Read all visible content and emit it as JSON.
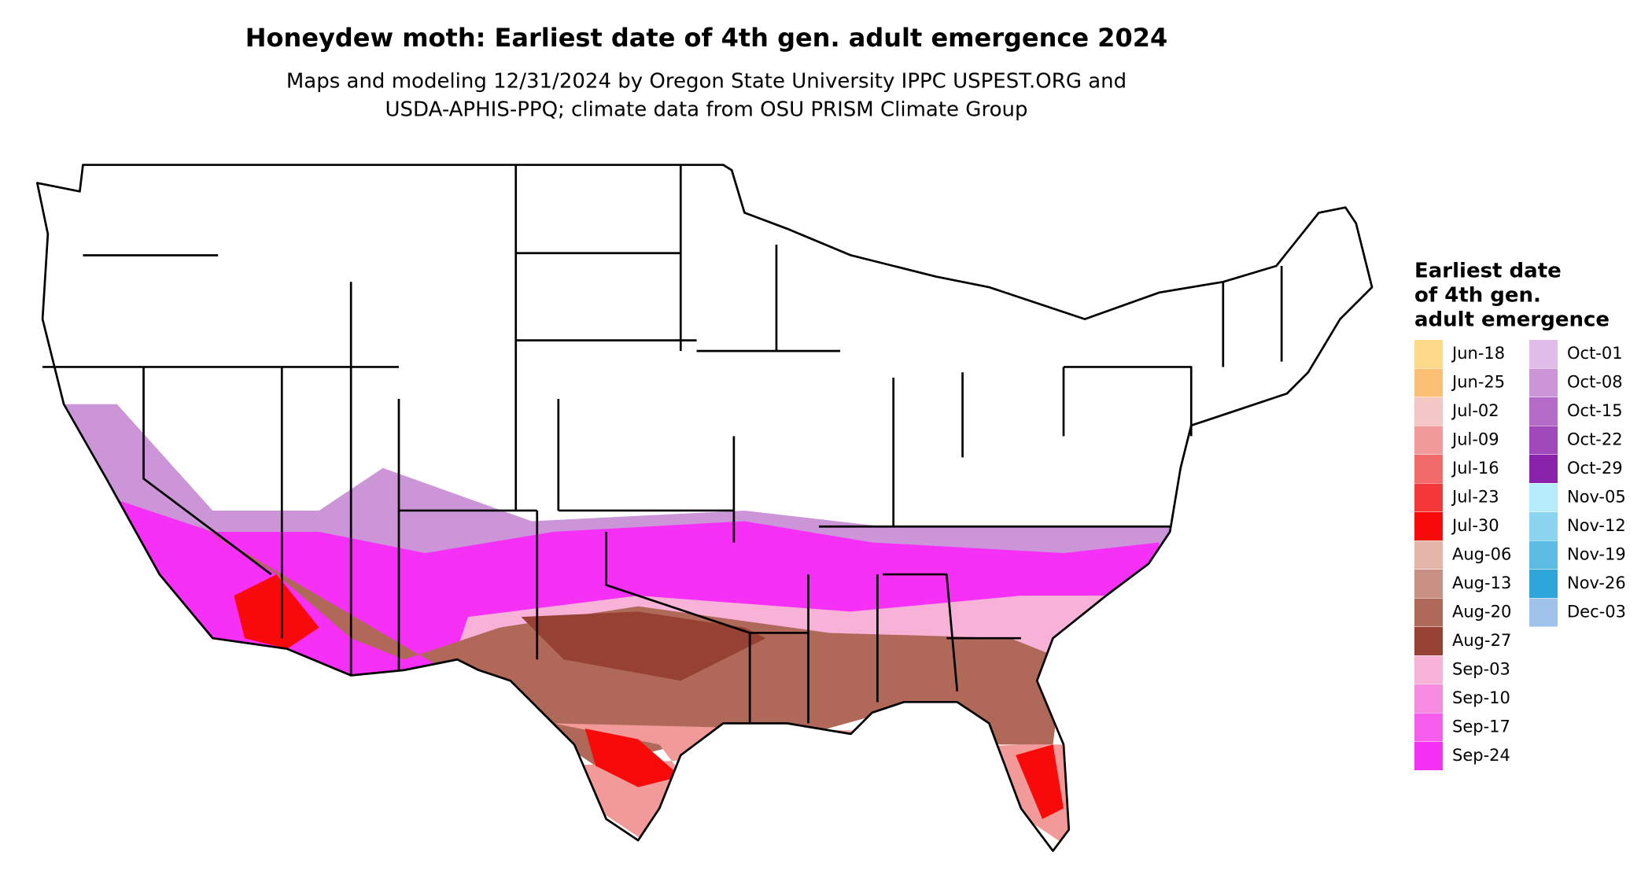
{
  "title": "Honeydew moth: Earliest date of 4th gen. adult emergence 2024",
  "subtitle": [
    "Maps and modeling 12/31/2024 by Oregon State University IPPC USPEST.ORG and",
    "USDA-APHIS-PPQ; climate data from OSU PRISM Climate Group"
  ],
  "legend": {
    "title": [
      "Earliest date",
      "of 4th gen.",
      "adult emergence"
    ],
    "items": [
      {
        "label": "Jun-18",
        "color": "#fdd98c"
      },
      {
        "label": "Jun-25",
        "color": "#fcc074"
      },
      {
        "label": "Jul-02",
        "color": "#f4c6c6"
      },
      {
        "label": "Jul-09",
        "color": "#f29a9a"
      },
      {
        "label": "Jul-16",
        "color": "#f26a6a"
      },
      {
        "label": "Jul-23",
        "color": "#f43838"
      },
      {
        "label": "Jul-30",
        "color": "#f80a0a"
      },
      {
        "label": "Aug-06",
        "color": "#e4b6aa"
      },
      {
        "label": "Aug-13",
        "color": "#c98f82"
      },
      {
        "label": "Aug-20",
        "color": "#b06858"
      },
      {
        "label": "Aug-27",
        "color": "#964133"
      },
      {
        "label": "Sep-03",
        "color": "#f8b2d8"
      },
      {
        "label": "Sep-10",
        "color": "#f88ae2"
      },
      {
        "label": "Sep-17",
        "color": "#f75ded"
      },
      {
        "label": "Sep-24",
        "color": "#f630f6"
      },
      {
        "label": "Oct-01",
        "color": "#e0bde8"
      },
      {
        "label": "Oct-08",
        "color": "#cb95d8"
      },
      {
        "label": "Oct-15",
        "color": "#b56cc9"
      },
      {
        "label": "Oct-22",
        "color": "#a047ba"
      },
      {
        "label": "Oct-29",
        "color": "#8a22ab"
      },
      {
        "label": "Nov-05",
        "color": "#b4ecfc"
      },
      {
        "label": "Nov-12",
        "color": "#8ad4f0"
      },
      {
        "label": "Nov-19",
        "color": "#5cbce4"
      },
      {
        "label": "Nov-26",
        "color": "#2ea6da"
      },
      {
        "label": "Dec-03",
        "color": "#9fc3ea"
      }
    ]
  }
}
